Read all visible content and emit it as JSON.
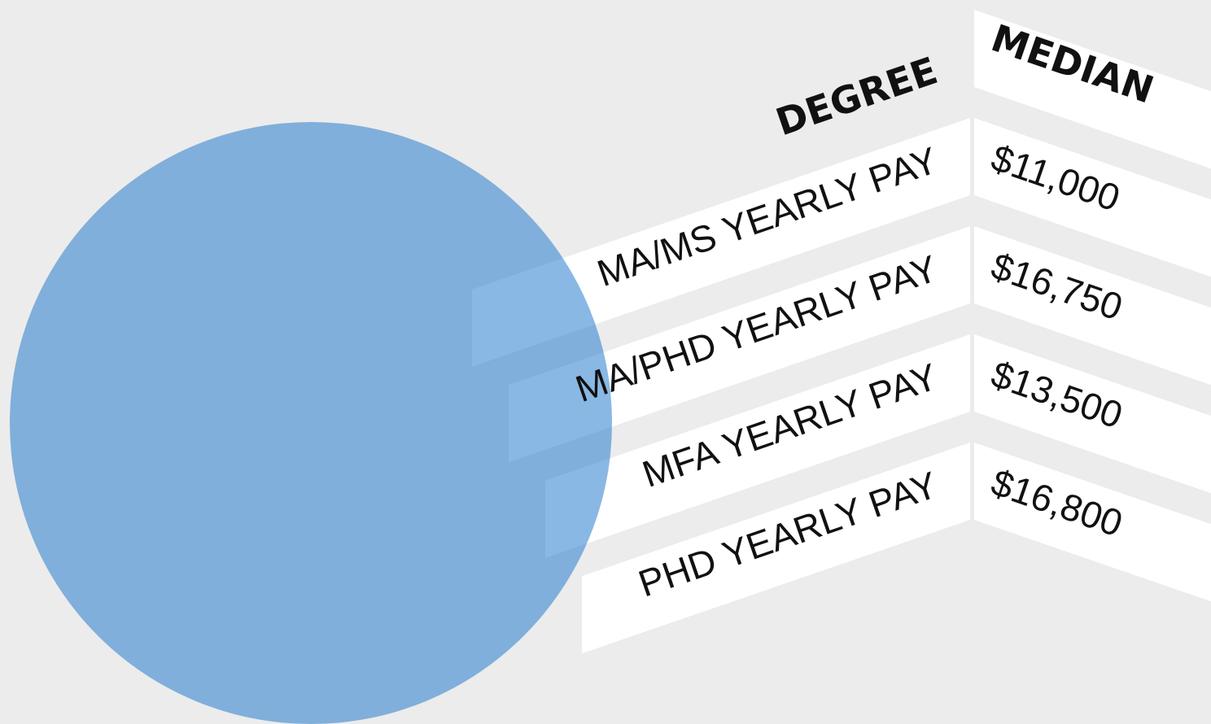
{
  "table": {
    "header": [
      "DEGREE",
      "MEDIAN"
    ],
    "rows": [
      [
        "MA/MS YEARLY PAY",
        "$11,000"
      ],
      [
        "MA/PHD YEARLY PAY",
        "$16,750"
      ],
      [
        "MFA YEARLY PAY",
        "$13,500"
      ],
      [
        "PHD YEARLY PAY",
        "$16,800"
      ]
    ]
  }
}
